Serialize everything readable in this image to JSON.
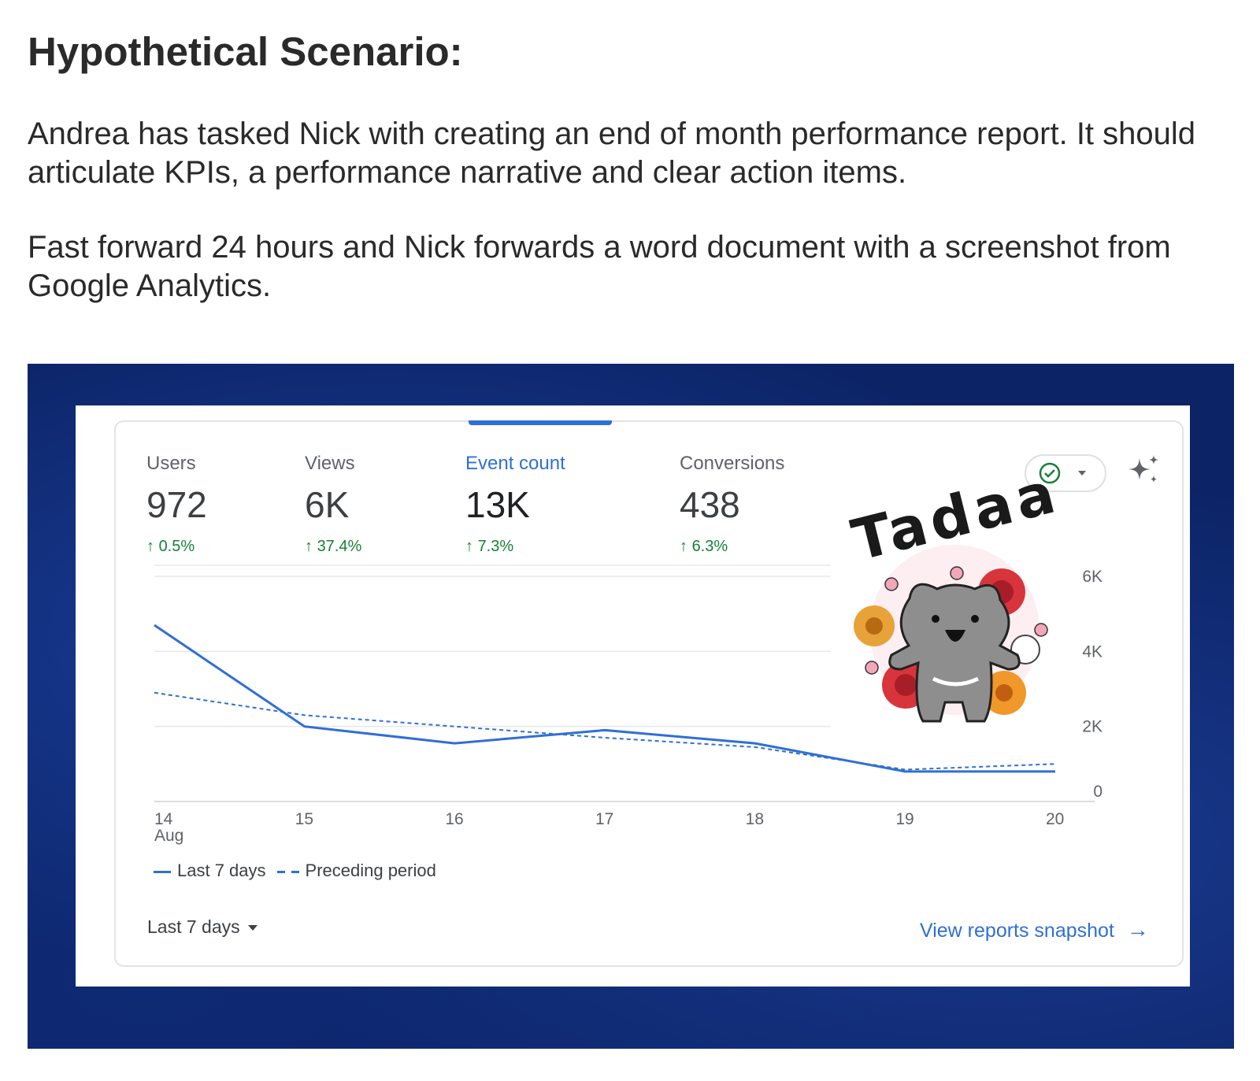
{
  "document": {
    "heading": "Hypothetical Scenario:",
    "paragraphs": [
      "Andrea has tasked Nick with creating an end of month performance report. It should articulate KPIs, a performance narrative and clear action items.",
      "Fast forward 24 hours and Nick forwards a word document with a screenshot from Google Analytics."
    ]
  },
  "analytics": {
    "metrics": [
      {
        "label": "Users",
        "value": "972",
        "delta": "0.5%"
      },
      {
        "label": "Views",
        "value": "6K",
        "delta": "37.4%"
      },
      {
        "label": "Event count",
        "value": "13K",
        "delta": "7.3%"
      },
      {
        "label": "Conversions",
        "value": "438",
        "delta": "6.3%"
      }
    ],
    "active_metric": "Event count",
    "sticker_text": "Tadaa",
    "legend": {
      "current": "Last 7 days",
      "previous": "Preceding period"
    },
    "date_range": "Last 7 days",
    "snapshot_link": "View reports snapshot",
    "accent_color": "#2f6fd6",
    "positive_color": "#188038",
    "icons": {
      "status": "check-circle-icon",
      "insights": "sparkle-icon",
      "link": "arrow-right-icon"
    }
  },
  "chart_data": {
    "type": "line",
    "x_ticks": [
      "14",
      "15",
      "16",
      "17",
      "18",
      "19",
      "20"
    ],
    "x_month": "Aug",
    "y_ticks": [
      "0",
      "2K",
      "4K",
      "6K"
    ],
    "ylim": [
      0,
      6500
    ],
    "series": [
      {
        "name": "Last 7 days",
        "style": "solid",
        "values": [
          4700,
          2000,
          1550,
          1900,
          1550,
          800,
          800
        ]
      },
      {
        "name": "Preceding period",
        "style": "dashed",
        "values": [
          2900,
          2300,
          2000,
          1700,
          1450,
          850,
          1000
        ]
      }
    ]
  }
}
